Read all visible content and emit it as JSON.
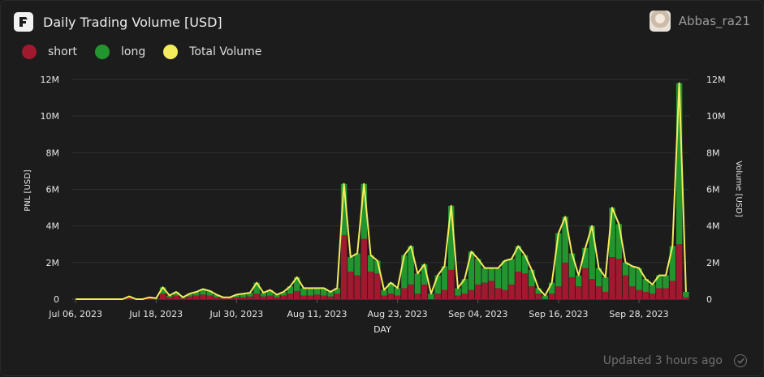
{
  "header": {
    "title": "Daily Trading Volume [USD]",
    "logo_icon": "app-logo-icon"
  },
  "user": {
    "name": "Abbas_ra21",
    "avatar_icon": "user-avatar-icon"
  },
  "legend": [
    {
      "label": "short",
      "color": "#a0192e"
    },
    {
      "label": "long",
      "color": "#23952f"
    },
    {
      "label": "Total Volume",
      "color": "#f4ec5c"
    }
  ],
  "footer": {
    "updated": "Updated 3 hours ago",
    "status_icon": "check-circle-icon"
  },
  "chart_data": {
    "type": "bar",
    "stacked": true,
    "xlabel": "DAY",
    "ylabel": "PNL [USD]",
    "ylabel_right": "Volume [USD]",
    "ylim": [
      0,
      12000000
    ],
    "yticks": [
      "0",
      "2M",
      "4M",
      "6M",
      "8M",
      "10M",
      "12M"
    ],
    "xticks": [
      "Jul 06, 2023",
      "Jul 18, 2023",
      "Jul 30, 2023",
      "Aug 11, 2023",
      "Aug 23, 2023",
      "Sep 04, 2023",
      "Sep 16, 2023",
      "Sep 28, 2023"
    ],
    "grid": true,
    "legend_position": "top-left",
    "x_start": "2023-07-06",
    "x_end": "2023-09-29",
    "series": [
      {
        "name": "short",
        "values": [
          0,
          0,
          0,
          0,
          0,
          0,
          0,
          0,
          100000,
          0,
          0,
          50000,
          30000,
          300000,
          100000,
          200000,
          50000,
          150000,
          200000,
          250000,
          200000,
          100000,
          50000,
          50000,
          100000,
          100000,
          150000,
          300000,
          150000,
          200000,
          100000,
          200000,
          300000,
          450000,
          200000,
          200000,
          250000,
          200000,
          150000,
          300000,
          3500000,
          1500000,
          1300000,
          3300000,
          1500000,
          1400000,
          200000,
          300000,
          200000,
          600000,
          800000,
          300000,
          800000,
          0,
          300000,
          500000,
          1600000,
          200000,
          300000,
          500000,
          800000,
          900000,
          1000000,
          600000,
          500000,
          800000,
          1500000,
          1400000,
          700000,
          300000,
          0,
          300000,
          700000,
          2000000,
          1200000,
          700000,
          1700000,
          1100000,
          700000,
          400000,
          2300000,
          2200000,
          1300000,
          700000,
          500000,
          400000,
          300000,
          600000,
          600000,
          1000000,
          3000000,
          100000
        ]
      },
      {
        "name": "long",
        "values": [
          0,
          0,
          0,
          0,
          0,
          0,
          0,
          0,
          50000,
          0,
          0,
          50000,
          20000,
          350000,
          100000,
          200000,
          50000,
          150000,
          200000,
          300000,
          250000,
          150000,
          50000,
          50000,
          150000,
          200000,
          200000,
          600000,
          200000,
          300000,
          150000,
          200000,
          400000,
          750000,
          400000,
          400000,
          350000,
          400000,
          250000,
          300000,
          2800000,
          800000,
          1200000,
          3000000,
          900000,
          700000,
          300000,
          600000,
          400000,
          1800000,
          2100000,
          1100000,
          1100000,
          300000,
          1000000,
          1300000,
          3500000,
          400000,
          800000,
          2100000,
          1400000,
          800000,
          700000,
          1100000,
          1600000,
          1400000,
          1400000,
          1000000,
          900000,
          300000,
          200000,
          600000,
          2900000,
          2500000,
          1300000,
          600000,
          1100000,
          2900000,
          1000000,
          800000,
          2700000,
          1900000,
          700000,
          1100000,
          1200000,
          700000,
          500000,
          700000,
          700000,
          1900000,
          8800000,
          300000
        ]
      },
      {
        "name": "Total Volume",
        "type": "line",
        "values": [
          0,
          0,
          0,
          0,
          0,
          0,
          0,
          0,
          150000,
          0,
          0,
          100000,
          50000,
          650000,
          200000,
          400000,
          100000,
          300000,
          400000,
          550000,
          450000,
          250000,
          100000,
          100000,
          250000,
          300000,
          350000,
          900000,
          350000,
          500000,
          250000,
          400000,
          700000,
          1200000,
          600000,
          600000,
          600000,
          600000,
          400000,
          600000,
          6300000,
          2300000,
          2500000,
          6300000,
          2400000,
          2100000,
          500000,
          900000,
          600000,
          2400000,
          2900000,
          1400000,
          1900000,
          300000,
          1300000,
          1800000,
          5100000,
          600000,
          1100000,
          2600000,
          2200000,
          1700000,
          1700000,
          1700000,
          2100000,
          2200000,
          2900000,
          2400000,
          1600000,
          600000,
          200000,
          900000,
          3600000,
          4500000,
          2500000,
          1300000,
          2800000,
          4000000,
          1700000,
          1200000,
          5000000,
          4100000,
          2000000,
          1800000,
          1700000,
          1100000,
          800000,
          1300000,
          1300000,
          2900000,
          11800000,
          400000
        ]
      }
    ]
  }
}
